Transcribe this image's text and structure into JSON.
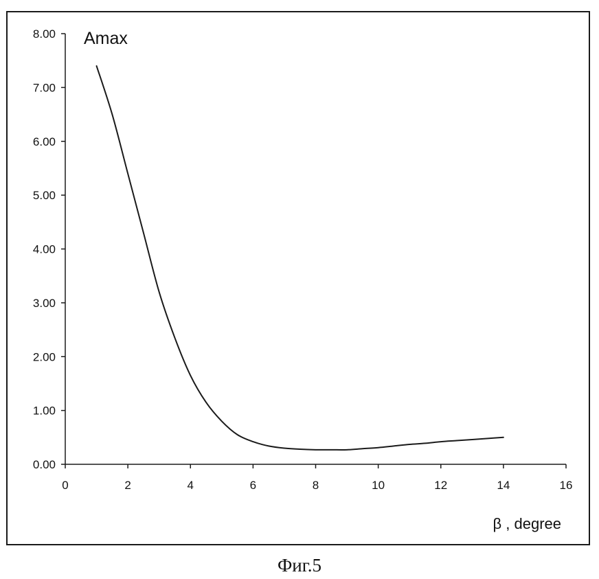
{
  "caption": "Фиг.5",
  "chart_data": {
    "type": "line",
    "ylabel": "Amax",
    "xlabel": "β , degree",
    "xlim": [
      0,
      16
    ],
    "ylim": [
      0,
      8
    ],
    "x_ticks": [
      0,
      2,
      4,
      6,
      8,
      10,
      12,
      14,
      16
    ],
    "x_tick_labels": [
      "0",
      "2",
      "4",
      "6",
      "8",
      "10",
      "12",
      "14",
      "16"
    ],
    "y_ticks": [
      0,
      1,
      2,
      3,
      4,
      5,
      6,
      7,
      8
    ],
    "y_tick_labels": [
      "0.00",
      "1.00",
      "2.00",
      "3.00",
      "4.00",
      "5.00",
      "6.00",
      "7.00",
      "8.00"
    ],
    "grid": false,
    "legend": "none",
    "line_color": "#1a1a1a",
    "series": [
      {
        "x": [
          1.0,
          1.5,
          2.0,
          2.5,
          3.0,
          3.5,
          4.0,
          4.5,
          5.0,
          5.5,
          6.0,
          6.5,
          7.0,
          7.5,
          8.0,
          8.5,
          9.0,
          9.5,
          10.0,
          10.5,
          11.0,
          11.5,
          12.0,
          12.5,
          13.0,
          13.5,
          14.0
        ],
        "values": [
          7.4,
          6.5,
          5.4,
          4.3,
          3.2,
          2.35,
          1.65,
          1.15,
          0.8,
          0.55,
          0.42,
          0.34,
          0.3,
          0.28,
          0.27,
          0.27,
          0.27,
          0.29,
          0.31,
          0.34,
          0.37,
          0.39,
          0.42,
          0.44,
          0.46,
          0.48,
          0.5
        ]
      }
    ]
  }
}
